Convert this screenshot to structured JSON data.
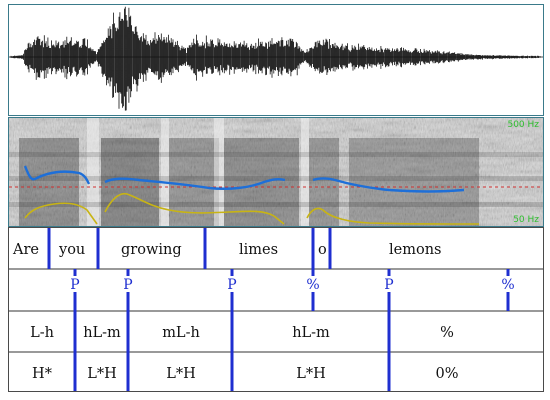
{
  "spectrogram": {
    "top_label": "500 Hz",
    "bottom_label": "50 Hz",
    "colors": {
      "pitch": "#1e6fd8",
      "intensity": "#c8b414",
      "reference_line": "#d03030",
      "range_label": "#2fbf2f"
    }
  },
  "tiers": {
    "words": [
      {
        "text": "Are"
      },
      {
        "text": "you"
      },
      {
        "text": "growing"
      },
      {
        "text": "limes"
      },
      {
        "text": "o"
      },
      {
        "text": "lemons"
      }
    ],
    "prominence": [
      {
        "text": "P"
      },
      {
        "text": "P"
      },
      {
        "text": "P"
      },
      {
        "text": "%"
      },
      {
        "text": "P"
      },
      {
        "text": "%"
      }
    ],
    "labels_row1": [
      {
        "text": "L-h"
      },
      {
        "text": "hL-m"
      },
      {
        "text": "mL-h"
      },
      {
        "text": "hL-m"
      },
      {
        "text": "%"
      }
    ],
    "labels_row2": [
      {
        "text": "H*"
      },
      {
        "text": "L*H"
      },
      {
        "text": "L*H"
      },
      {
        "text": "L*H"
      },
      {
        "text": "0%"
      }
    ],
    "colors": {
      "boundary": "#1f2fd0",
      "divider": "#333333"
    }
  }
}
